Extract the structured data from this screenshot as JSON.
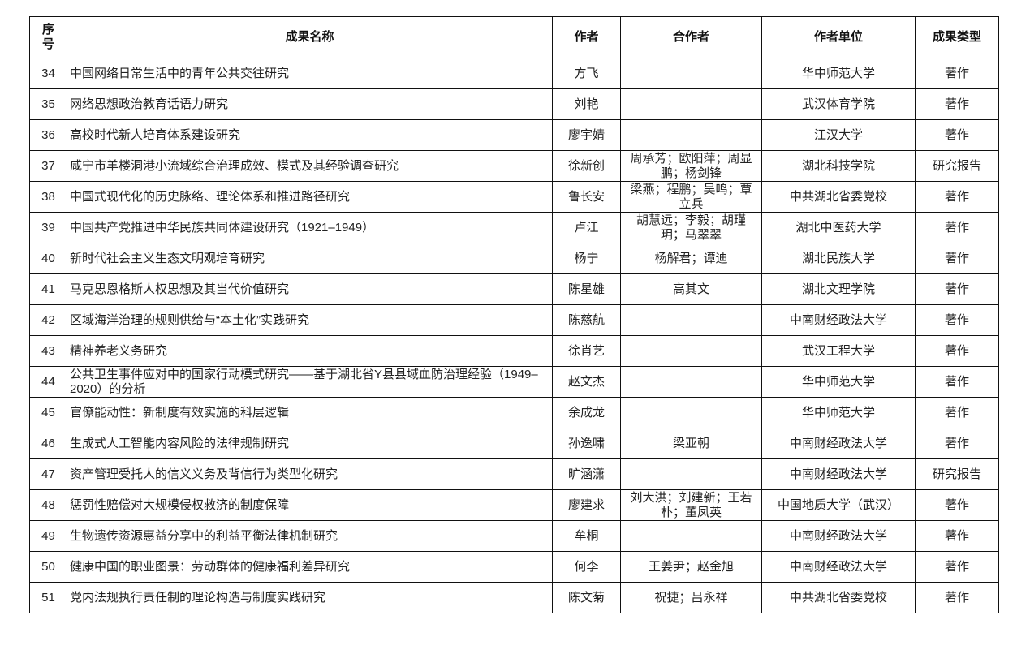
{
  "headers": [
    "序号",
    "成果名称",
    "作者",
    "合作者",
    "作者单位",
    "成果类型"
  ],
  "rows": [
    {
      "no": "34",
      "title": "中国网络日常生活中的青年公共交往研究",
      "author": "方飞",
      "coauthors": "",
      "unit": "华中师范大学",
      "type": "著作"
    },
    {
      "no": "35",
      "title": "网络思想政治教育话语力研究",
      "author": "刘艳",
      "coauthors": "",
      "unit": "武汉体育学院",
      "type": "著作"
    },
    {
      "no": "36",
      "title": "高校时代新人培育体系建设研究",
      "author": "廖宇婧",
      "coauthors": "",
      "unit": "江汉大学",
      "type": "著作"
    },
    {
      "no": "37",
      "title": "咸宁市羊楼洞港小流域综合治理成效、模式及其经验调查研究",
      "author": "徐新创",
      "coauthors": "周承芳；欧阳萍；周显鹏；杨剑锋",
      "unit": "湖北科技学院",
      "type": "研究报告"
    },
    {
      "no": "38",
      "title": "中国式现代化的历史脉络、理论体系和推进路径研究",
      "author": "鲁长安",
      "coauthors": "梁燕；程鹏；吴鸣；覃立兵",
      "unit": "中共湖北省委党校",
      "type": "著作"
    },
    {
      "no": "39",
      "title": "中国共产党推进中华民族共同体建设研究（1921–1949）",
      "author": "卢江",
      "coauthors": "胡慧远；李毅；胡瑾玥；马翠翠",
      "unit": "湖北中医药大学",
      "type": "著作"
    },
    {
      "no": "40",
      "title": "新时代社会主义生态文明观培育研究",
      "author": "杨宁",
      "coauthors": "杨解君；谭迪",
      "unit": "湖北民族大学",
      "type": "著作"
    },
    {
      "no": "41",
      "title": "马克思恩格斯人权思想及其当代价值研究",
      "author": "陈星雄",
      "coauthors": "高其文",
      "unit": "湖北文理学院",
      "type": "著作"
    },
    {
      "no": "42",
      "title": "区域海洋治理的规则供给与“本土化”实践研究",
      "author": "陈慈航",
      "coauthors": "",
      "unit": "中南财经政法大学",
      "type": "著作"
    },
    {
      "no": "43",
      "title": "精神养老义务研究",
      "author": "徐肖艺",
      "coauthors": "",
      "unit": "武汉工程大学",
      "type": "著作"
    },
    {
      "no": "44",
      "title": "公共卫生事件应对中的国家行动模式研究——基于湖北省Y县县域血防治理经验（1949–2020）的分析",
      "author": "赵文杰",
      "coauthors": "",
      "unit": "华中师范大学",
      "type": "著作"
    },
    {
      "no": "45",
      "title": "官僚能动性：新制度有效实施的科层逻辑",
      "author": "余成龙",
      "coauthors": "",
      "unit": "华中师范大学",
      "type": "著作"
    },
    {
      "no": "46",
      "title": "生成式人工智能内容风险的法律规制研究",
      "author": "孙逸啸",
      "coauthors": "梁亚朝",
      "unit": "中南财经政法大学",
      "type": "著作"
    },
    {
      "no": "47",
      "title": "资产管理受托人的信义义务及背信行为类型化研究",
      "author": "旷涵潇",
      "coauthors": "",
      "unit": "中南财经政法大学",
      "type": "研究报告"
    },
    {
      "no": "48",
      "title": "惩罚性赔偿对大规模侵权救济的制度保障",
      "author": "廖建求",
      "coauthors": "刘大洪；刘建新；王若朴；董凤英",
      "unit": "中国地质大学（武汉）",
      "type": "著作"
    },
    {
      "no": "49",
      "title": "生物遗传资源惠益分享中的利益平衡法律机制研究",
      "author": "牟桐",
      "coauthors": "",
      "unit": "中南财经政法大学",
      "type": "著作"
    },
    {
      "no": "50",
      "title": "健康中国的职业图景：劳动群体的健康福利差异研究",
      "author": "何李",
      "coauthors": "王姜尹；赵金旭",
      "unit": "中南财经政法大学",
      "type": "著作"
    },
    {
      "no": "51",
      "title": "党内法规执行责任制的理论构造与制度实践研究",
      "author": "陈文菊",
      "coauthors": "祝捷；吕永祥",
      "unit": "中共湖北省委党校",
      "type": "著作"
    }
  ]
}
